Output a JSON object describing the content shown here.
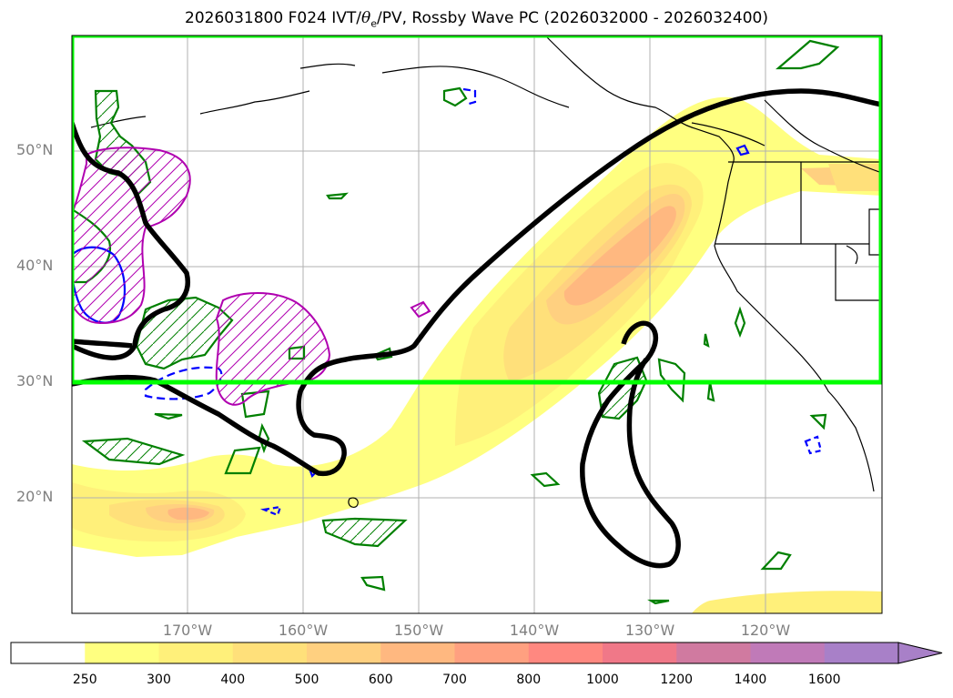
{
  "title": {
    "prefix": "2026031800 F024 IVT/",
    "theta": "θ",
    "theta_sub": "e",
    "suffix": "/PV, Rossby Wave PC (2026032000 - 2026032400)"
  },
  "colors": {
    "box": "#00ff00",
    "ivt_contour": "#000000",
    "pv_positive": "#008000",
    "pv_negative": "#0000ff",
    "hatch": "#b000b0"
  },
  "map": {
    "lat_labels": [
      "50°N",
      "40°N",
      "30°N",
      "20°N"
    ],
    "lon_labels": [
      "170°W",
      "160°W",
      "150°W",
      "140°W",
      "130°W",
      "120°W"
    ]
  },
  "colorbar": {
    "levels": [
      "250",
      "300",
      "400",
      "500",
      "600",
      "700",
      "800",
      "1000",
      "1200",
      "1400",
      "1600"
    ],
    "colors": [
      "#ffffff",
      "#ffff80",
      "#fff07a",
      "#ffe07a",
      "#ffd080",
      "#ffb880",
      "#ffa080",
      "#ff8880",
      "#f07888",
      "#d07aa0",
      "#c07ab8",
      "#a880c8"
    ]
  }
}
